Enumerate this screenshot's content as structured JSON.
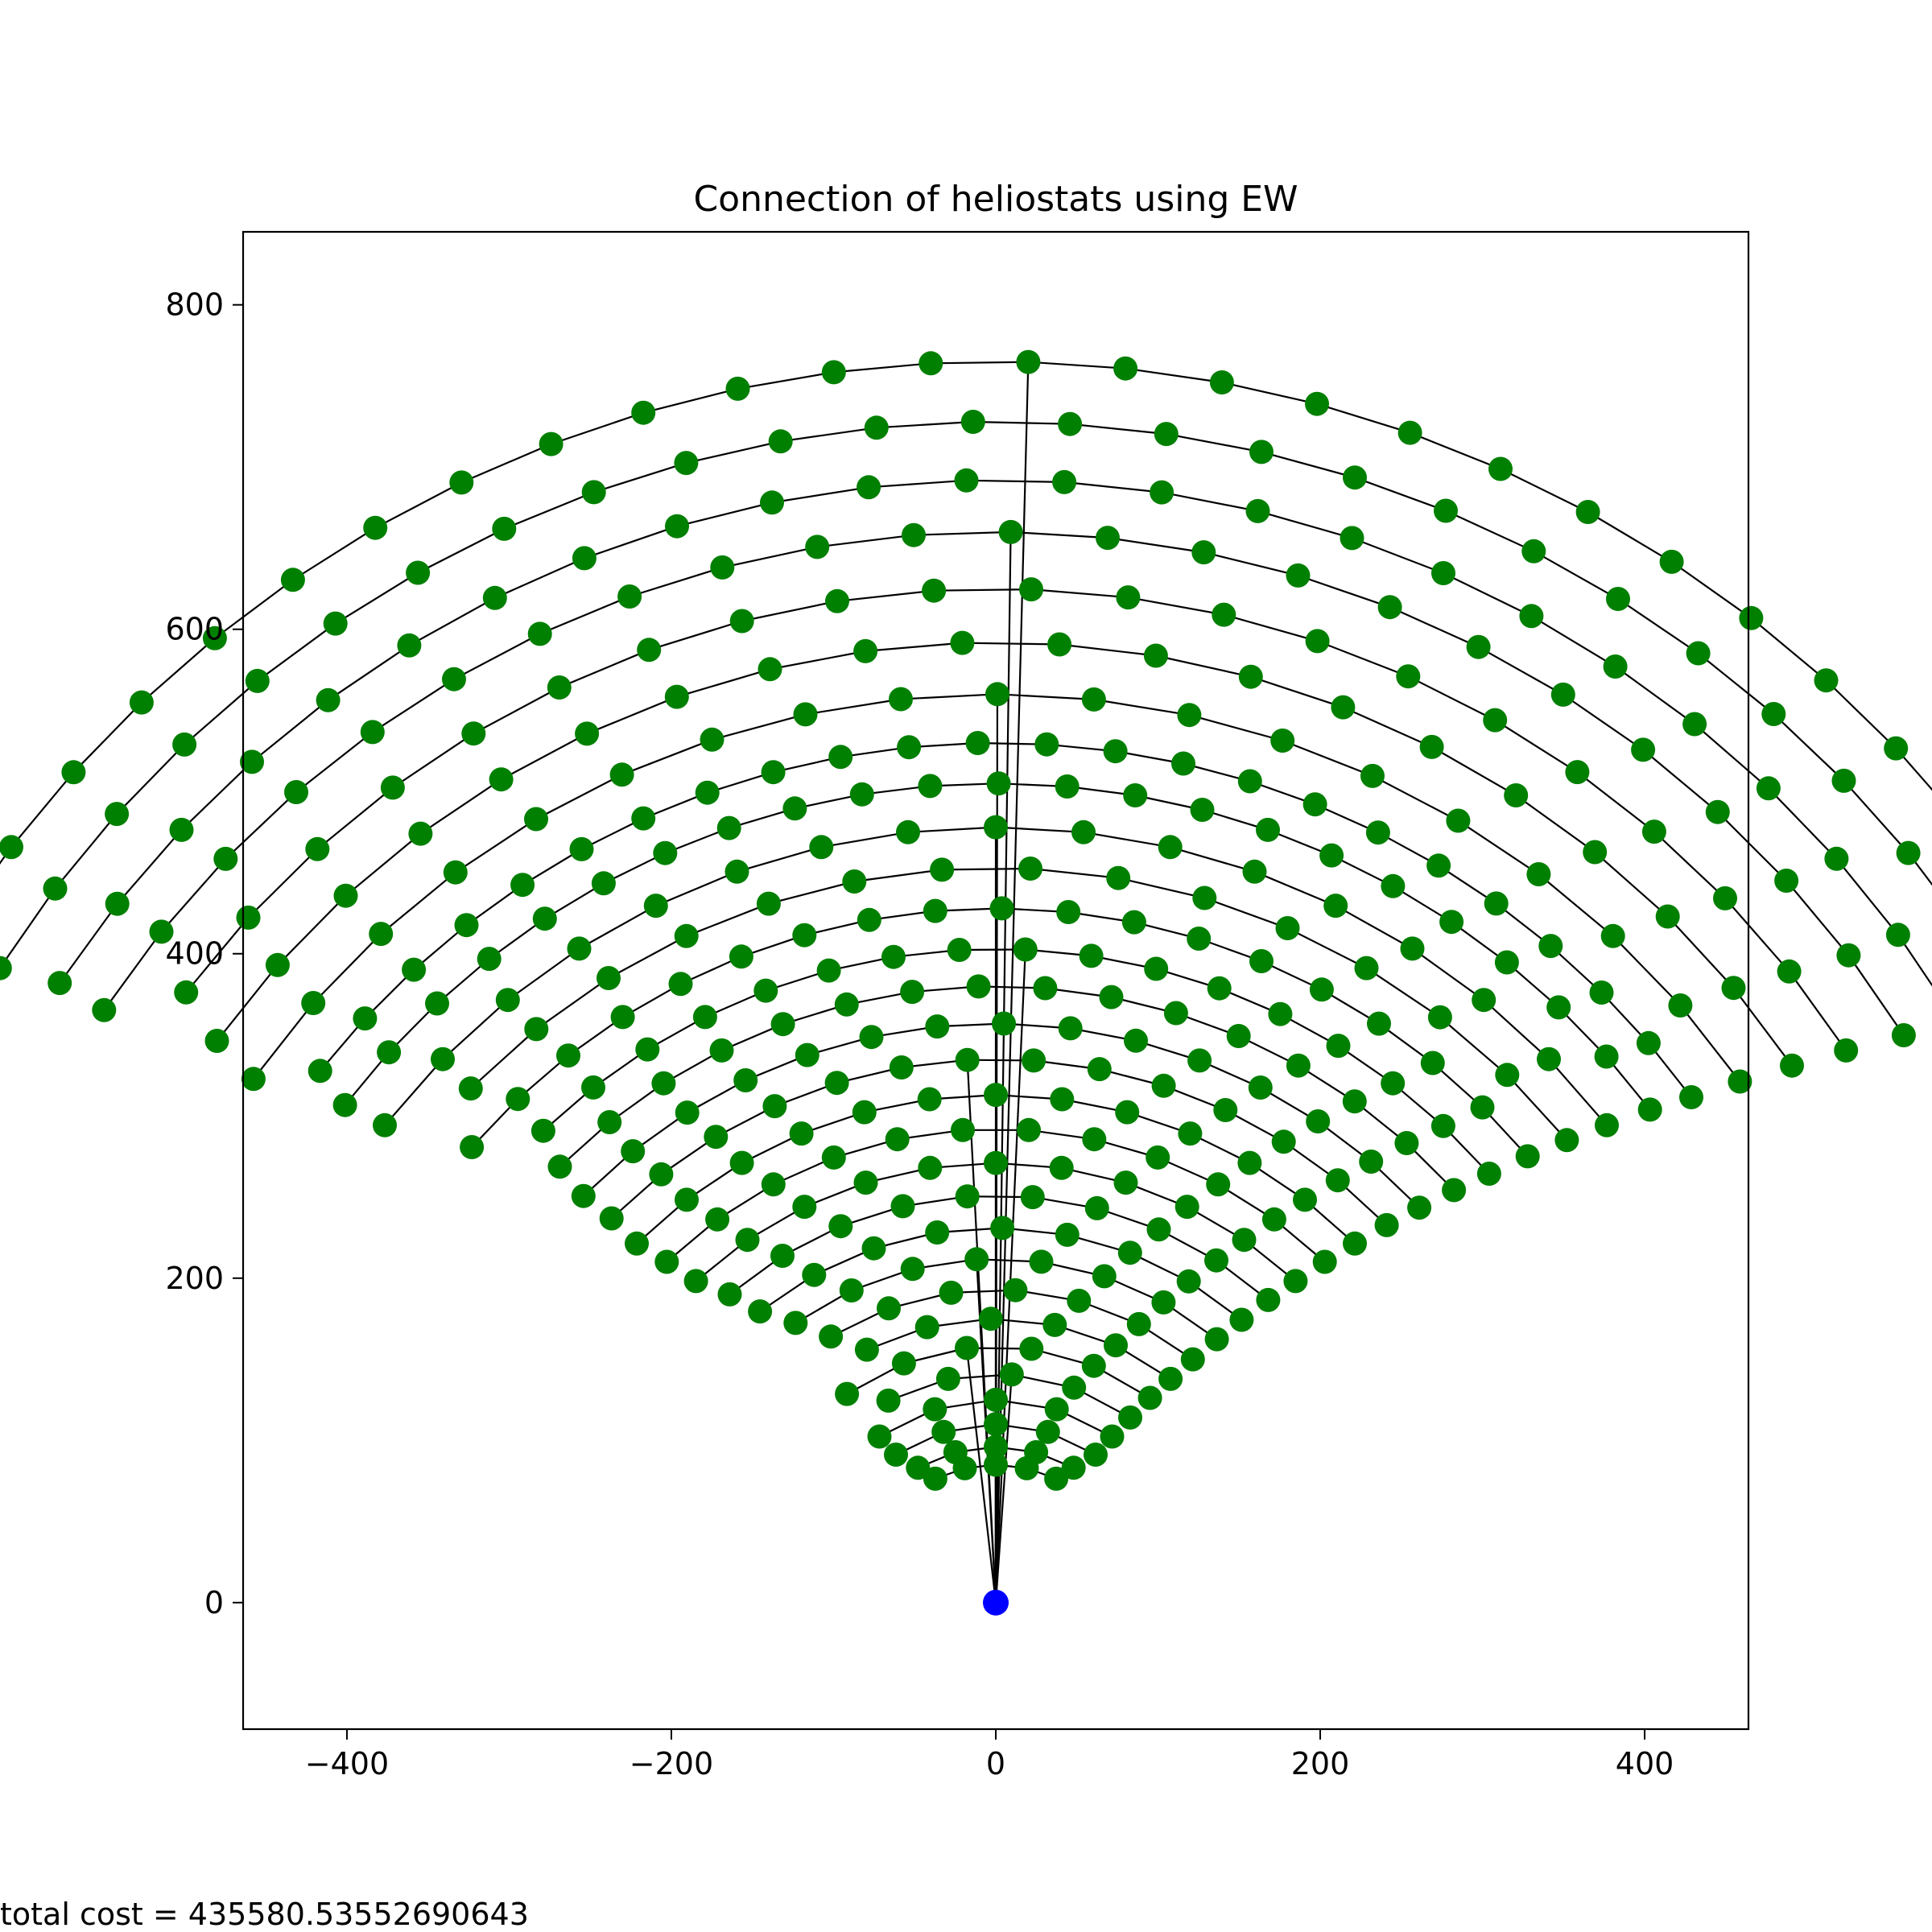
{
  "chart_data": {
    "type": "scatter",
    "title": "Connection of heliostats using EW",
    "xlabel": "",
    "ylabel": "",
    "xlim": [
      -464,
      464
    ],
    "ylim": [
      -78,
      845
    ],
    "xticks": [
      -400,
      -200,
      0,
      200,
      400
    ],
    "xtick_labels": [
      "−400",
      "−200",
      "0",
      "200",
      "400"
    ],
    "yticks": [
      0,
      200,
      400,
      600,
      800
    ],
    "ytick_labels": [
      "0",
      "200",
      "400",
      "600",
      "800"
    ],
    "grid": false,
    "legend": "none",
    "node_color": "#008000",
    "tower_color": "#0000ff",
    "edge_color": "#000000",
    "tower": {
      "x": 0,
      "y": 0
    },
    "heliostat_rings": [
      {
        "radius": 765,
        "start_deg": 30.0,
        "end_deg": 150.0,
        "step_deg": 4.5
      },
      {
        "radius": 728,
        "start_deg": 30.0,
        "end_deg": 150.0,
        "step_deg": 4.7
      },
      {
        "radius": 692,
        "start_deg": 31.5,
        "end_deg": 148.5,
        "step_deg": 5.0
      },
      {
        "radius": 660,
        "start_deg": 32.0,
        "end_deg": 148.0,
        "step_deg": 5.2
      },
      {
        "radius": 625,
        "start_deg": 33.0,
        "end_deg": 147.0,
        "step_deg": 5.5
      },
      {
        "radius": 592,
        "start_deg": 34.0,
        "end_deg": 146.0,
        "step_deg": 5.8
      },
      {
        "radius": 560,
        "start_deg": 35.0,
        "end_deg": 145.0,
        "step_deg": 6.1
      },
      {
        "radius": 530,
        "start_deg": 36.0,
        "end_deg": 144.0,
        "step_deg": 4.6
      },
      {
        "radius": 505,
        "start_deg": 37.0,
        "end_deg": 143.0,
        "step_deg": 4.8
      },
      {
        "radius": 478,
        "start_deg": 38.0,
        "end_deg": 142.0,
        "step_deg": 6.5
      },
      {
        "radius": 453,
        "start_deg": 39.0,
        "end_deg": 141.0,
        "step_deg": 6.9
      },
      {
        "radius": 428,
        "start_deg": 40.0,
        "end_deg": 140.0,
        "step_deg": 5.5
      },
      {
        "radius": 403,
        "start_deg": 41.0,
        "end_deg": 139.0,
        "step_deg": 5.8
      },
      {
        "radius": 380,
        "start_deg": 42.0,
        "end_deg": 138.0,
        "step_deg": 6.2
      },
      {
        "radius": 357,
        "start_deg": 43.0,
        "end_deg": 137.0,
        "step_deg": 6.6
      },
      {
        "radius": 335,
        "start_deg": 44.0,
        "end_deg": 136.0,
        "step_deg": 7.0
      },
      {
        "radius": 313,
        "start_deg": 45.0,
        "end_deg": 135.0,
        "step_deg": 7.5
      },
      {
        "radius": 292,
        "start_deg": 46.0,
        "end_deg": 134.0,
        "step_deg": 8.0
      },
      {
        "radius": 271,
        "start_deg": 47.0,
        "end_deg": 133.0,
        "step_deg": 8.6
      },
      {
        "radius": 251,
        "start_deg": 48.0,
        "end_deg": 132.0,
        "step_deg": 9.2
      },
      {
        "radius": 231,
        "start_deg": 49.0,
        "end_deg": 131.0,
        "step_deg": 10.0
      },
      {
        "radius": 212,
        "start_deg": 50.0,
        "end_deg": 130.0,
        "step_deg": 10.8
      },
      {
        "radius": 193,
        "start_deg": 51.0,
        "end_deg": 129.0,
        "step_deg": 11.8
      },
      {
        "radius": 175,
        "start_deg": 52.0,
        "end_deg": 128.0,
        "step_deg": 13.0
      },
      {
        "radius": 158,
        "start_deg": 53.0,
        "end_deg": 127.0,
        "step_deg": 14.5
      },
      {
        "radius": 141,
        "start_deg": 54.0,
        "end_deg": 126.0,
        "step_deg": 16.0
      },
      {
        "radius": 125,
        "start_deg": 55.0,
        "end_deg": 125.0,
        "step_deg": 17.5
      },
      {
        "radius": 110,
        "start_deg": 56.0,
        "end_deg": 124.0,
        "step_deg": 17.0
      },
      {
        "radius": 96,
        "start_deg": 60.0,
        "end_deg": 120.0,
        "step_deg": 15.0
      },
      {
        "radius": 85,
        "start_deg": 64.0,
        "end_deg": 116.0,
        "step_deg": 13.0
      }
    ],
    "annotations": [
      "total cost = 435580.53552690643"
    ]
  },
  "footer": {
    "total_cost_text": "total cost = 435580.53552690643"
  }
}
